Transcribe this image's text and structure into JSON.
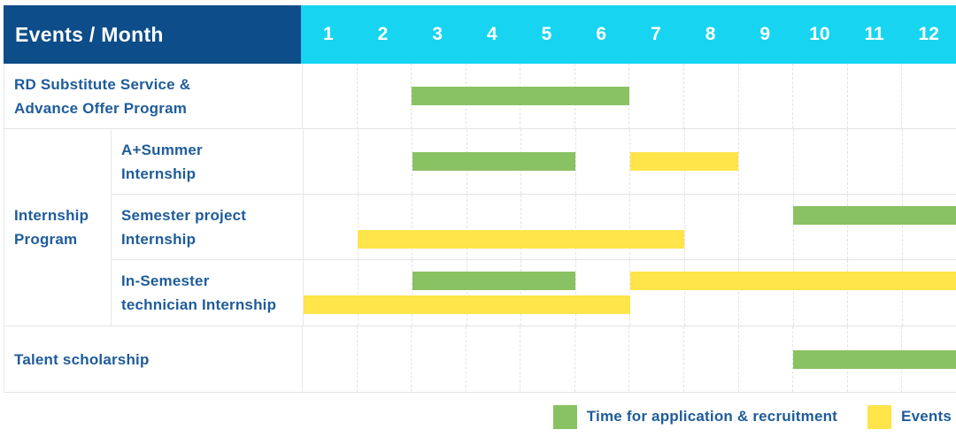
{
  "header": {
    "corner_label": "Events / Month",
    "months": [
      "1",
      "2",
      "3",
      "4",
      "5",
      "6",
      "7",
      "8",
      "9",
      "10",
      "11",
      "12"
    ]
  },
  "colors": {
    "header_navy": "#0D4D89",
    "header_cyan": "#17D5F0",
    "bar_green": "#89C262",
    "bar_yellow": "#FFE44A",
    "label_blue": "#1E5C9A"
  },
  "groups": {
    "internship": {
      "label": "Internship Program",
      "lines": [
        "Internship",
        "Program"
      ]
    }
  },
  "chart_data": {
    "type": "bar",
    "subtype": "gantt-timeline",
    "title": "Events / Month",
    "x_axis": {
      "unit": "month",
      "ticks": [
        1,
        2,
        3,
        4,
        5,
        6,
        7,
        8,
        9,
        10,
        11,
        12
      ],
      "range": [
        1,
        12
      ],
      "grid": "dashed-vertical"
    },
    "series": {
      "recruitment": {
        "label": "Time for application & recruitment",
        "color": "#89C262"
      },
      "events": {
        "label": "Events",
        "color": "#FFE44A"
      }
    },
    "rows": [
      {
        "group": null,
        "label": "RD Substitute Service & Advance Offer Program",
        "label_lines": [
          "RD Substitute Service &",
          "Advance Offer Program"
        ],
        "tracks": [
          [
            {
              "series": "recruitment",
              "start_month": 3,
              "end_month": 6
            }
          ]
        ]
      },
      {
        "group": "internship",
        "label": "A+Summer Internship",
        "label_lines": [
          "A+Summer",
          "Internship"
        ],
        "tracks": [
          [
            {
              "series": "recruitment",
              "start_month": 3,
              "end_month": 5
            },
            {
              "series": "events",
              "start_month": 7,
              "end_month": 8
            }
          ]
        ]
      },
      {
        "group": "internship",
        "label": "Semester project Internship",
        "label_lines": [
          "Semester project",
          "Internship"
        ],
        "tracks": [
          [
            {
              "series": "recruitment",
              "start_month": 10,
              "end_month": 12
            }
          ],
          [
            {
              "series": "events",
              "start_month": 2,
              "end_month": 7
            }
          ]
        ]
      },
      {
        "group": "internship",
        "label": "In-Semester technician Internship",
        "label_lines": [
          "In-Semester",
          "technician Internship"
        ],
        "tracks": [
          [
            {
              "series": "recruitment",
              "start_month": 3,
              "end_month": 5
            },
            {
              "series": "events",
              "start_month": 7,
              "end_month": 12
            }
          ],
          [
            {
              "series": "events",
              "start_month": 1,
              "end_month": 6
            }
          ]
        ]
      },
      {
        "group": null,
        "label": "Talent scholarship",
        "label_lines": [
          "Talent scholarship"
        ],
        "tracks": [
          [
            {
              "series": "recruitment",
              "start_month": 10,
              "end_month": 12
            }
          ]
        ]
      }
    ],
    "legend_position": "bottom-right"
  },
  "legend": {
    "items": [
      {
        "series": "recruitment",
        "label": "Time for application & recruitment"
      },
      {
        "series": "events",
        "label": "Events"
      }
    ]
  }
}
